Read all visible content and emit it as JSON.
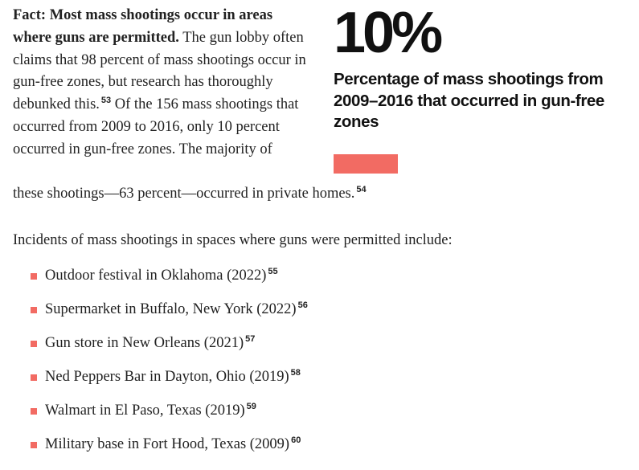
{
  "fact": {
    "lead": "Fact: Most mass shootings occur in areas where guns are permitted.",
    "body": "The gun lobby often claims that 98 percent of mass shootings occur in gun-free zones, but research has thoroughly debunked this.",
    "ref1": "53",
    "body2": "Of the 156 mass shootings that occurred from 2009 to 2016, only 10 percent occurred in gun-free zones. The majority of",
    "tail": "these shootings—63 percent—occurred in private homes.",
    "ref2": "54"
  },
  "stat": {
    "value": "10%",
    "fraction": 0.1,
    "caption": "Percentage of mass shootings from 2009–2016 that occurred in gun-free zones",
    "bar_color": "#f26b63"
  },
  "intro": "Incidents of mass shootings in spaces where guns were permitted include:",
  "incidents": [
    {
      "text": "Outdoor festival in Oklahoma (2022)",
      "ref": "55"
    },
    {
      "text": "Supermarket in Buffalo, New York (2022)",
      "ref": "56"
    },
    {
      "text": "Gun store in New Orleans (2021)",
      "ref": "57"
    },
    {
      "text": "Ned Peppers Bar in Dayton, Ohio (2019)",
      "ref": "58"
    },
    {
      "text": "Walmart in El Paso, Texas (2019)",
      "ref": "59"
    },
    {
      "text": "Military base in Fort Hood, Texas (2009)",
      "ref": "60"
    }
  ]
}
